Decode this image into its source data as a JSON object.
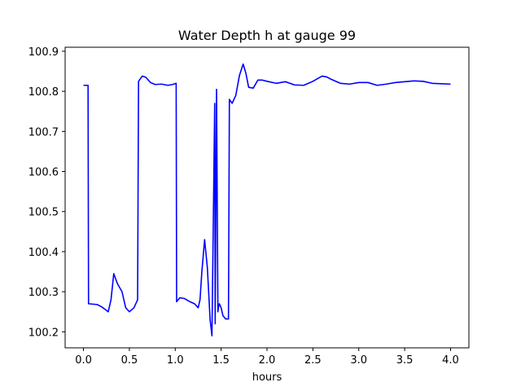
{
  "chart_data": {
    "type": "line",
    "title": "Water Depth h at gauge 99",
    "xlabel": "hours",
    "ylabel": "",
    "xlim": [
      -0.2,
      4.2
    ],
    "ylim": [
      100.16,
      100.91
    ],
    "xticks": [
      0.0,
      0.5,
      1.0,
      1.5,
      2.0,
      2.5,
      3.0,
      3.5,
      4.0
    ],
    "xtick_labels": [
      "0.0",
      "0.5",
      "1.0",
      "1.5",
      "2.0",
      "2.5",
      "3.0",
      "3.5",
      "4.0"
    ],
    "yticks": [
      100.2,
      100.3,
      100.4,
      100.5,
      100.6,
      100.7,
      100.8,
      100.9
    ],
    "ytick_labels": [
      "100.2",
      "100.3",
      "100.4",
      "100.5",
      "100.6",
      "100.7",
      "100.8",
      "100.9"
    ],
    "grid": false,
    "series": [
      {
        "color": "#0000ff",
        "x": [
          0.0,
          0.05,
          0.055,
          0.15,
          0.2,
          0.27,
          0.3,
          0.33,
          0.37,
          0.42,
          0.46,
          0.5,
          0.55,
          0.59,
          0.6,
          0.64,
          0.68,
          0.73,
          0.78,
          0.85,
          0.92,
          0.97,
          1.01,
          1.015,
          1.05,
          1.1,
          1.16,
          1.21,
          1.25,
          1.27,
          1.29,
          1.32,
          1.35,
          1.38,
          1.4,
          1.43,
          1.435,
          1.45,
          1.465,
          1.47,
          1.48,
          1.5,
          1.52,
          1.55,
          1.58,
          1.59,
          1.62,
          1.66,
          1.7,
          1.74,
          1.77,
          1.8,
          1.85,
          1.9,
          1.95,
          2.0,
          2.1,
          2.2,
          2.3,
          2.4,
          2.5,
          2.6,
          2.65,
          2.7,
          2.8,
          2.9,
          3.0,
          3.1,
          3.2,
          3.3,
          3.4,
          3.5,
          3.6,
          3.7,
          3.8,
          3.9,
          4.0
        ],
        "y": [
          100.815,
          100.815,
          100.27,
          100.268,
          100.262,
          100.25,
          100.28,
          100.345,
          100.32,
          100.3,
          100.26,
          100.25,
          100.26,
          100.28,
          100.825,
          100.838,
          100.835,
          100.822,
          100.817,
          100.818,
          100.815,
          100.817,
          100.82,
          100.275,
          100.285,
          100.283,
          100.275,
          100.27,
          100.26,
          100.28,
          100.35,
          100.43,
          100.36,
          100.23,
          100.19,
          100.77,
          100.22,
          100.805,
          100.25,
          100.26,
          100.27,
          100.26,
          100.24,
          100.232,
          100.232,
          100.78,
          100.77,
          100.79,
          100.84,
          100.868,
          100.845,
          100.81,
          100.808,
          100.828,
          100.828,
          100.825,
          100.82,
          100.824,
          100.816,
          100.815,
          100.825,
          100.838,
          100.836,
          100.83,
          100.82,
          100.818,
          100.822,
          100.822,
          100.815,
          100.818,
          100.822,
          100.824,
          100.826,
          100.825,
          100.82,
          100.819,
          100.818
        ]
      }
    ]
  }
}
